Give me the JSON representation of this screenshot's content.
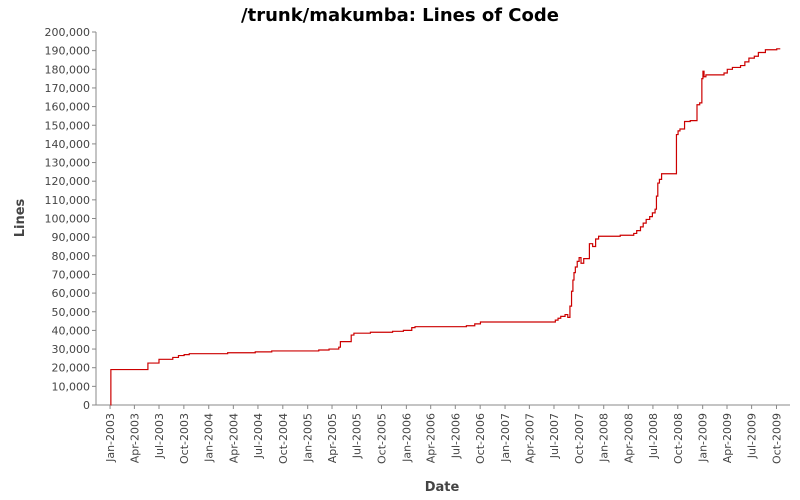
{
  "chart_data": {
    "type": "line",
    "title": "/trunk/makumba: Lines of Code",
    "xlabel": "Date",
    "ylabel": "Lines",
    "xlim": [
      "2002-11-10",
      "2009-11-20"
    ],
    "ylim": [
      0,
      200000
    ],
    "grid": false,
    "y_ticks": [
      0,
      10000,
      20000,
      30000,
      40000,
      50000,
      60000,
      70000,
      80000,
      90000,
      100000,
      110000,
      120000,
      130000,
      140000,
      150000,
      160000,
      170000,
      180000,
      190000,
      200000
    ],
    "y_tick_labels": [
      "0",
      "10,000",
      "20,000",
      "30,000",
      "40,000",
      "50,000",
      "60,000",
      "70,000",
      "80,000",
      "90,000",
      "100,000",
      "110,000",
      "120,000",
      "130,000",
      "140,000",
      "150,000",
      "160,000",
      "170,000",
      "180,000",
      "190,000",
      "200,000"
    ],
    "x_ticks": [
      "2003-01-01",
      "2003-04-01",
      "2003-07-01",
      "2003-10-01",
      "2004-01-01",
      "2004-04-01",
      "2004-07-01",
      "2004-10-01",
      "2005-01-01",
      "2005-04-01",
      "2005-07-01",
      "2005-10-01",
      "2006-01-01",
      "2006-04-01",
      "2006-07-01",
      "2006-10-01",
      "2007-01-01",
      "2007-04-01",
      "2007-07-01",
      "2007-10-01",
      "2008-01-01",
      "2008-04-01",
      "2008-07-01",
      "2008-10-01",
      "2009-01-01",
      "2009-04-01",
      "2009-07-01",
      "2009-10-01"
    ],
    "x_tick_labels": [
      "Jan-2003",
      "Apr-2003",
      "Jul-2003",
      "Oct-2003",
      "Jan-2004",
      "Apr-2004",
      "Jul-2004",
      "Oct-2004",
      "Jan-2005",
      "Apr-2005",
      "Jul-2005",
      "Oct-2005",
      "Jan-2006",
      "Apr-2006",
      "Jul-2006",
      "Oct-2006",
      "Jan-2007",
      "Apr-2007",
      "Jul-2007",
      "Oct-2007",
      "Jan-2008",
      "Apr-2008",
      "Jul-2008",
      "Oct-2008",
      "Jan-2009",
      "Apr-2009",
      "Jul-2009",
      "Oct-2009"
    ],
    "series": [
      {
        "color": "#cc0000",
        "step": true,
        "points": [
          [
            "2003-01-03",
            0
          ],
          [
            "2003-01-04",
            19000
          ],
          [
            "2003-05-20",
            19000
          ],
          [
            "2003-05-21",
            22500
          ],
          [
            "2003-06-30",
            22500
          ],
          [
            "2003-07-01",
            24500
          ],
          [
            "2003-08-20",
            24500
          ],
          [
            "2003-08-21",
            25500
          ],
          [
            "2003-09-10",
            25500
          ],
          [
            "2003-09-11",
            26500
          ],
          [
            "2003-10-01",
            26500
          ],
          [
            "2003-10-02",
            27000
          ],
          [
            "2003-10-20",
            27000
          ],
          [
            "2003-10-21",
            27500
          ],
          [
            "2004-03-10",
            27500
          ],
          [
            "2004-03-11",
            28000
          ],
          [
            "2004-06-20",
            28000
          ],
          [
            "2004-06-21",
            28500
          ],
          [
            "2004-08-20",
            28500
          ],
          [
            "2004-08-21",
            29000
          ],
          [
            "2005-02-10",
            29000
          ],
          [
            "2005-02-11",
            29500
          ],
          [
            "2005-03-20",
            29500
          ],
          [
            "2005-03-21",
            30000
          ],
          [
            "2005-04-25",
            30000
          ],
          [
            "2005-04-26",
            31000
          ],
          [
            "2005-05-01",
            31000
          ],
          [
            "2005-05-02",
            34000
          ],
          [
            "2005-06-10",
            34000
          ],
          [
            "2005-06-11",
            37500
          ],
          [
            "2005-06-20",
            37500
          ],
          [
            "2005-06-21",
            38500
          ],
          [
            "2005-08-20",
            38500
          ],
          [
            "2005-08-21",
            39000
          ],
          [
            "2005-11-10",
            39000
          ],
          [
            "2005-11-11",
            39500
          ],
          [
            "2005-12-20",
            39500
          ],
          [
            "2005-12-21",
            40000
          ],
          [
            "2006-01-20",
            40000
          ],
          [
            "2006-01-21",
            41500
          ],
          [
            "2006-02-01",
            41500
          ],
          [
            "2006-02-02",
            42000
          ],
          [
            "2006-08-10",
            42000
          ],
          [
            "2006-08-11",
            42500
          ],
          [
            "2006-09-10",
            42500
          ],
          [
            "2006-09-11",
            43500
          ],
          [
            "2006-10-01",
            43500
          ],
          [
            "2006-10-02",
            44500
          ],
          [
            "2007-07-05",
            44500
          ],
          [
            "2007-07-06",
            45500
          ],
          [
            "2007-07-15",
            45500
          ],
          [
            "2007-07-16",
            46500
          ],
          [
            "2007-07-25",
            46500
          ],
          [
            "2007-07-26",
            47500
          ],
          [
            "2007-08-10",
            47500
          ],
          [
            "2007-08-11",
            48500
          ],
          [
            "2007-08-20",
            48500
          ],
          [
            "2007-08-21",
            47000
          ],
          [
            "2007-08-28",
            47000
          ],
          [
            "2007-08-29",
            53000
          ],
          [
            "2007-09-03",
            53000
          ],
          [
            "2007-09-04",
            61000
          ],
          [
            "2007-09-08",
            61000
          ],
          [
            "2007-09-09",
            67000
          ],
          [
            "2007-09-12",
            67000
          ],
          [
            "2007-09-13",
            71000
          ],
          [
            "2007-09-17",
            71000
          ],
          [
            "2007-09-18",
            74000
          ],
          [
            "2007-09-24",
            74000
          ],
          [
            "2007-09-25",
            77000
          ],
          [
            "2007-10-01",
            77000
          ],
          [
            "2007-10-02",
            79000
          ],
          [
            "2007-10-08",
            79000
          ],
          [
            "2007-10-09",
            76000
          ],
          [
            "2007-10-18",
            76000
          ],
          [
            "2007-10-19",
            78500
          ],
          [
            "2007-11-08",
            78500
          ],
          [
            "2007-11-09",
            86500
          ],
          [
            "2007-11-20",
            86500
          ],
          [
            "2007-11-21",
            85000
          ],
          [
            "2007-12-01",
            85000
          ],
          [
            "2007-12-02",
            89000
          ],
          [
            "2007-12-12",
            89000
          ],
          [
            "2007-12-13",
            90500
          ],
          [
            "2008-03-01",
            90500
          ],
          [
            "2008-03-02",
            91000
          ],
          [
            "2008-04-20",
            91000
          ],
          [
            "2008-04-21",
            92000
          ],
          [
            "2008-05-01",
            92000
          ],
          [
            "2008-05-02",
            93500
          ],
          [
            "2008-05-15",
            93500
          ],
          [
            "2008-05-16",
            95500
          ],
          [
            "2008-05-25",
            95500
          ],
          [
            "2008-05-26",
            97500
          ],
          [
            "2008-06-05",
            97500
          ],
          [
            "2008-06-06",
            99500
          ],
          [
            "2008-06-18",
            99500
          ],
          [
            "2008-06-19",
            101000
          ],
          [
            "2008-06-28",
            101000
          ],
          [
            "2008-06-29",
            103000
          ],
          [
            "2008-07-08",
            103000
          ],
          [
            "2008-07-09",
            105000
          ],
          [
            "2008-07-13",
            105000
          ],
          [
            "2008-07-14",
            112000
          ],
          [
            "2008-07-18",
            112000
          ],
          [
            "2008-07-19",
            119000
          ],
          [
            "2008-07-24",
            119000
          ],
          [
            "2008-07-25",
            121000
          ],
          [
            "2008-08-01",
            121000
          ],
          [
            "2008-08-02",
            124000
          ],
          [
            "2008-09-25",
            124000
          ],
          [
            "2008-09-26",
            145000
          ],
          [
            "2008-10-01",
            145000
          ],
          [
            "2008-10-02",
            147000
          ],
          [
            "2008-10-08",
            147000
          ],
          [
            "2008-10-09",
            148000
          ],
          [
            "2008-10-25",
            148000
          ],
          [
            "2008-10-26",
            152000
          ],
          [
            "2008-11-15",
            152000
          ],
          [
            "2008-11-16",
            152500
          ],
          [
            "2008-12-10",
            152500
          ],
          [
            "2008-12-11",
            161000
          ],
          [
            "2008-12-20",
            161000
          ],
          [
            "2008-12-21",
            162000
          ],
          [
            "2008-12-28",
            162000
          ],
          [
            "2008-12-29",
            175000
          ],
          [
            "2009-01-01",
            175000
          ],
          [
            "2009-01-02",
            179000
          ],
          [
            "2009-01-05",
            179000
          ],
          [
            "2009-01-06",
            176000
          ],
          [
            "2009-01-12",
            176000
          ],
          [
            "2009-01-13",
            177000
          ],
          [
            "2009-03-20",
            177000
          ],
          [
            "2009-03-21",
            178000
          ],
          [
            "2009-04-01",
            178000
          ],
          [
            "2009-04-02",
            180000
          ],
          [
            "2009-04-20",
            180000
          ],
          [
            "2009-04-21",
            181000
          ],
          [
            "2009-05-20",
            181000
          ],
          [
            "2009-05-21",
            182000
          ],
          [
            "2009-06-05",
            182000
          ],
          [
            "2009-06-06",
            184000
          ],
          [
            "2009-06-20",
            184000
          ],
          [
            "2009-06-21",
            186000
          ],
          [
            "2009-07-10",
            186000
          ],
          [
            "2009-07-11",
            187000
          ],
          [
            "2009-07-25",
            187000
          ],
          [
            "2009-07-26",
            189000
          ],
          [
            "2009-08-20",
            189000
          ],
          [
            "2009-08-21",
            190500
          ],
          [
            "2009-10-01",
            190500
          ],
          [
            "2009-10-02",
            191000
          ],
          [
            "2009-10-15",
            191000
          ]
        ]
      }
    ]
  }
}
